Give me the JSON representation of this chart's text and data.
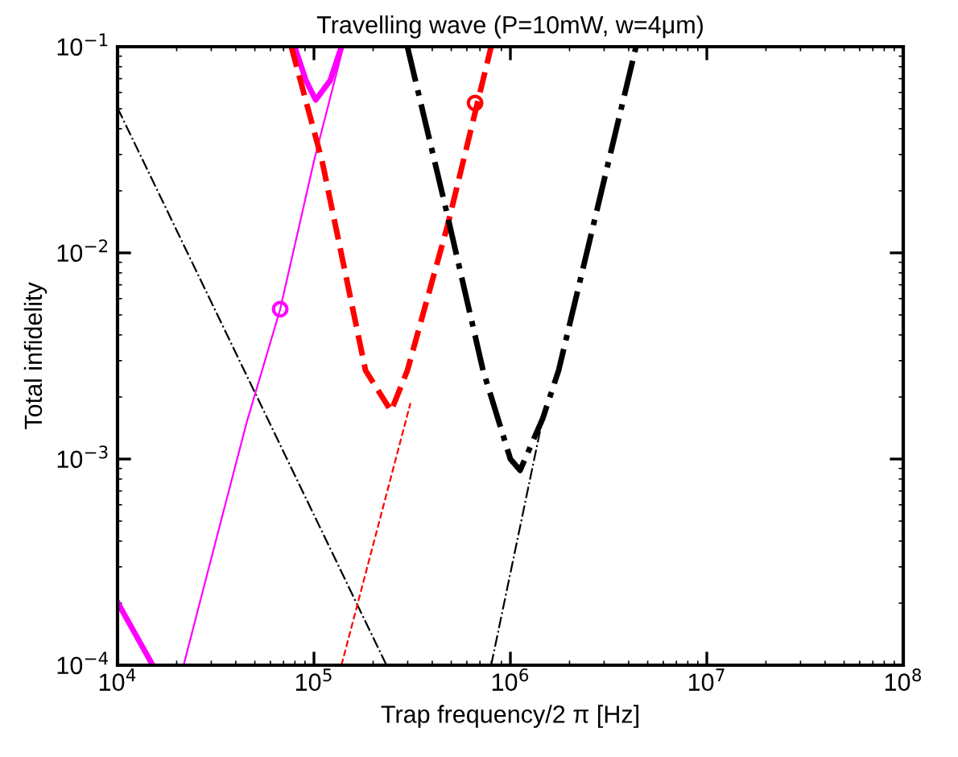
{
  "chart_data": {
    "type": "line",
    "title": "Travelling wave (P=10mW, w=4μm)",
    "xlabel": "Trap frequency/2 π [Hz]",
    "ylabel": "Total infidelity",
    "log": "xy",
    "grid": false,
    "legend": false,
    "xlim": [
      10000,
      100000000
    ],
    "ylim": [
      0.0001,
      0.1
    ],
    "xticks": [
      {
        "value": 10000,
        "label": "10$^{4}$"
      },
      {
        "value": 100000,
        "label": "10$^{5}$"
      },
      {
        "value": 1000000,
        "label": "10$^{6}$"
      },
      {
        "value": 10000000,
        "label": "10$^{7}$"
      },
      {
        "value": 100000000,
        "label": "10$^{8}$"
      }
    ],
    "yticks": [
      {
        "value": 0.0001,
        "label": "10$^{−4}$"
      },
      {
        "value": 0.001,
        "label": "10$^{−3}$"
      },
      {
        "value": 0.01,
        "label": "10$^{−2}$"
      },
      {
        "value": 0.1,
        "label": "10$^{−1}$"
      }
    ],
    "series": [
      {
        "color": "#000000",
        "line_style": "dashdot",
        "x": [
          10000,
          234000
        ],
        "values": [
          0.0505,
          0.0001
        ]
      },
      {
        "color": "#ff00ff",
        "line_style": "solid",
        "x": [
          21700,
          27700,
          35400,
          45300,
          67300,
          100000,
          141000
        ],
        "values": [
          0.0001,
          0.000246,
          0.000604,
          0.00149,
          0.00533,
          0.0279,
          0.1
        ]
      },
      {
        "color": "#ff00ff",
        "line_style": "solid",
        "x": [
          10000,
          15100,
          null,
          79800,
          91000,
          102000,
          121000,
          138000
        ],
        "values": [
          0.000202,
          0.0001,
          null,
          0.1,
          0.0686,
          0.0552,
          0.0686,
          0.1
        ]
      },
      {
        "color": "#ff0000",
        "line_style": "dashed",
        "x": [
          138000,
          310000
        ],
        "values": [
          0.0001,
          0.00187
        ]
      },
      {
        "color": "#ff0000",
        "line_style": "dashed",
        "x": [
          76700,
          110000,
          183000,
          247000,
          299000,
          479000,
          798000
        ],
        "values": [
          0.1,
          0.0279,
          0.00269,
          0.00171,
          0.00269,
          0.0136,
          0.1
        ]
      },
      {
        "color": "#000000",
        "line_style": "dashdot",
        "x": [
          798000,
          1460000
        ],
        "values": [
          0.0001,
          0.00157
        ]
      },
      {
        "color": "#000000",
        "line_style": "dashdot",
        "x": [
          299000,
          470000,
          726000,
          1000000,
          1120000,
          1460000,
          1760000,
          4360000
        ],
        "values": [
          0.1,
          0.0163,
          0.00269,
          0.001,
          0.000881,
          0.00157,
          0.00269,
          0.1
        ]
      },
      {
        "type": "scatter",
        "marker": "circle",
        "color": "#ff00ff",
        "x": [
          67300
        ],
        "values": [
          0.00533
        ]
      },
      {
        "type": "scatter",
        "marker": "circle",
        "color": "#ff0000",
        "x": [
          661000
        ],
        "values": [
          0.0533
        ]
      }
    ]
  }
}
